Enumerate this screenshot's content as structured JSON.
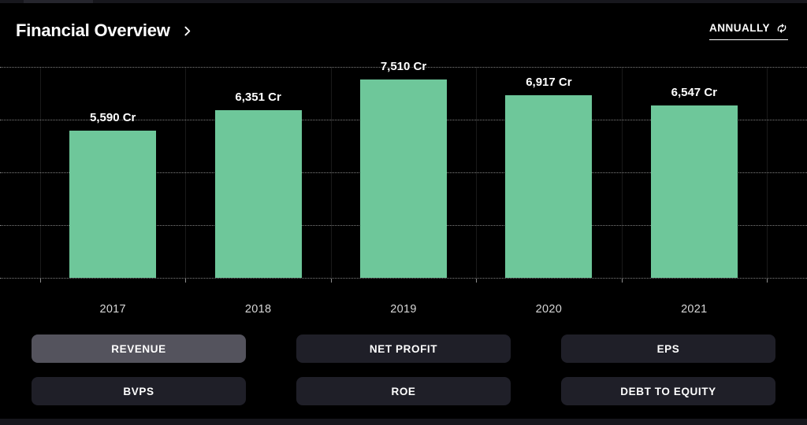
{
  "header": {
    "title": "Financial Overview",
    "period_selector": {
      "label": "ANNUALLY",
      "icon": "refresh-sync"
    }
  },
  "chart_data": {
    "type": "bar",
    "title": "Financial Overview",
    "categories": [
      "2017",
      "2018",
      "2019",
      "2020",
      "2021"
    ],
    "series": [
      {
        "name": "REVENUE",
        "values": [
          5590,
          6351,
          7510,
          6917,
          6547
        ]
      }
    ],
    "value_labels": [
      "5,590 Cr",
      "6,351 Cr",
      "7,510 Cr",
      "6,917 Cr",
      "6,547 Cr"
    ],
    "unit": "Cr",
    "xlabel": "",
    "ylabel": "",
    "ylim": [
      0,
      8000
    ],
    "grid_step": 2000,
    "grid": true,
    "legend_position": "none",
    "bar_color": "#6ec79a"
  },
  "metric_buttons": [
    {
      "label": "REVENUE",
      "active": true
    },
    {
      "label": "NET PROFIT",
      "active": false
    },
    {
      "label": "EPS",
      "active": false
    },
    {
      "label": "BVPS",
      "active": false
    },
    {
      "label": "ROE",
      "active": false
    },
    {
      "label": "DEBT TO EQUITY",
      "active": false
    }
  ],
  "colors": {
    "background": "#000000",
    "bar": "#6ec79a",
    "text": "#ffffff",
    "year_label": "#d6d6d6",
    "button_bg": "#1f1f28",
    "button_active_bg": "#54535d",
    "gridline": "rgba(255,255,255,0.5)"
  }
}
